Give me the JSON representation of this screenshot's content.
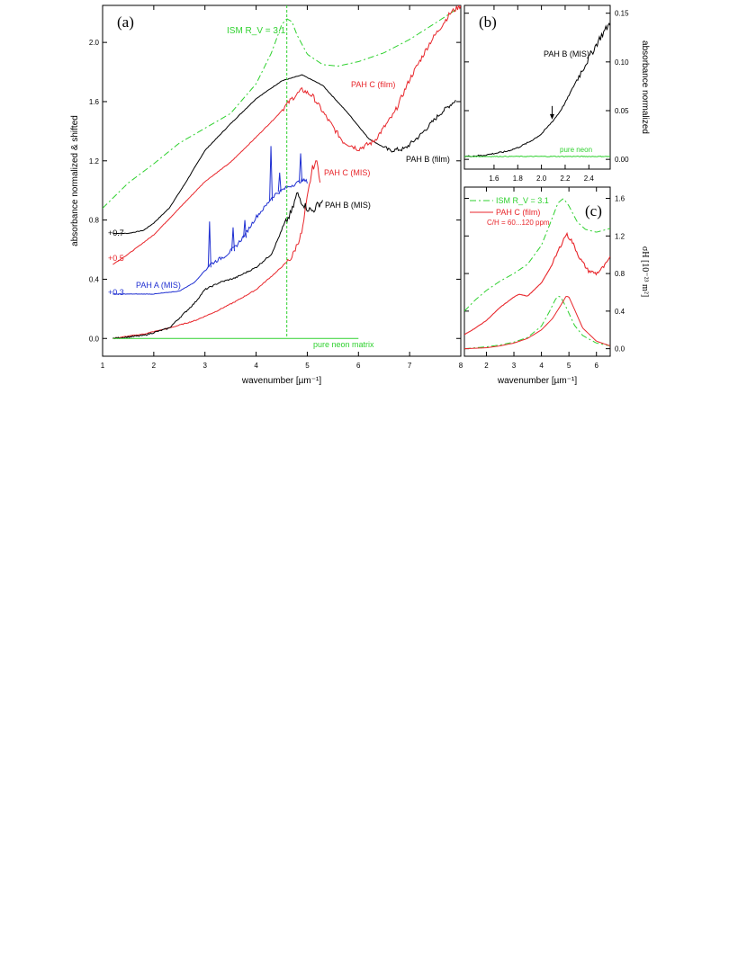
{
  "colors": {
    "black": "#000000",
    "red": "#e8262b",
    "blue": "#1f2fd1",
    "green": "#2fd12f"
  },
  "chart_data": [
    {
      "panel": "(a)",
      "type": "line",
      "xlabel": "wavenumber [µm⁻¹]",
      "ylabel": "absorbance normalized & shifted",
      "xlim": [
        1,
        8
      ],
      "ylim": [
        -0.12,
        2.25
      ],
      "xticks": [
        "1",
        "2",
        "3",
        "4",
        "5",
        "6",
        "7",
        "8"
      ],
      "yticks": [
        "0.0",
        "0.4",
        "0.8",
        "1.2",
        "1.6",
        "2.0"
      ],
      "offsets": [
        "+0.7",
        "+0.5",
        "+0.3"
      ],
      "series": [
        {
          "name": "ISM R_V = 3.1",
          "color": "green",
          "dash": "dashdot",
          "x": [
            1.0,
            1.5,
            2.0,
            2.5,
            3.0,
            3.5,
            4.0,
            4.3,
            4.5,
            4.6,
            4.7,
            4.8,
            5.0,
            5.3,
            5.6,
            6.0,
            6.5,
            7.0,
            7.5,
            7.9
          ],
          "y": [
            0.88,
            1.05,
            1.18,
            1.32,
            1.42,
            1.52,
            1.72,
            1.93,
            2.12,
            2.16,
            2.14,
            2.05,
            1.92,
            1.85,
            1.84,
            1.87,
            1.93,
            2.02,
            2.13,
            2.22
          ]
        },
        {
          "name": "PAH B (film)",
          "color": "black",
          "x": [
            1.2,
            1.5,
            1.8,
            2.0,
            2.3,
            2.6,
            3.0,
            3.5,
            4.0,
            4.5,
            4.9,
            5.3,
            5.8,
            6.2,
            6.6,
            6.9,
            7.2,
            7.6,
            7.9
          ],
          "y": [
            0.71,
            0.71,
            0.73,
            0.78,
            0.88,
            1.04,
            1.27,
            1.45,
            1.62,
            1.74,
            1.78,
            1.71,
            1.52,
            1.35,
            1.27,
            1.28,
            1.37,
            1.52,
            1.61
          ]
        },
        {
          "name": "PAH C (film)",
          "color": "red",
          "x": [
            1.2,
            1.5,
            2.0,
            2.5,
            3.0,
            3.5,
            4.0,
            4.4,
            4.7,
            4.9,
            5.1,
            5.4,
            5.7,
            6.0,
            6.3,
            6.7,
            7.0,
            7.4,
            7.8,
            8.0
          ],
          "y": [
            0.5,
            0.57,
            0.7,
            0.88,
            1.06,
            1.19,
            1.36,
            1.5,
            1.62,
            1.68,
            1.64,
            1.48,
            1.33,
            1.28,
            1.33,
            1.52,
            1.75,
            2.0,
            2.2,
            2.25
          ]
        },
        {
          "name": "PAH C (MIS)",
          "color": "red",
          "x": [
            1.2,
            1.8,
            2.3,
            2.8,
            3.2,
            3.6,
            4.0,
            4.4,
            4.7,
            4.9,
            5.0,
            5.1,
            5.2,
            5.25
          ],
          "y": [
            0.0,
            0.03,
            0.07,
            0.12,
            0.18,
            0.25,
            0.33,
            0.45,
            0.55,
            0.72,
            0.95,
            1.15,
            1.2,
            1.05
          ]
        },
        {
          "name": "PAH B (MIS)",
          "color": "black",
          "x": [
            1.2,
            1.8,
            2.3,
            2.8,
            3.0,
            3.3,
            3.6,
            4.0,
            4.3,
            4.5,
            4.7,
            4.8,
            4.9,
            5.0,
            5.1,
            5.2,
            5.3
          ],
          "y": [
            0.0,
            0.02,
            0.07,
            0.24,
            0.33,
            0.38,
            0.41,
            0.48,
            0.57,
            0.73,
            0.86,
            0.98,
            0.92,
            0.88,
            0.86,
            0.9,
            0.93
          ]
        },
        {
          "name": "PAH A (MIS)",
          "color": "blue",
          "x": [
            1.2,
            2.0,
            2.5,
            2.8,
            3.0,
            3.1,
            3.2,
            3.4,
            3.6,
            3.8,
            4.0,
            4.2,
            4.3,
            4.4,
            4.6,
            4.8,
            4.9,
            5.0
          ],
          "y": [
            0.3,
            0.3,
            0.32,
            0.38,
            0.46,
            0.5,
            0.52,
            0.56,
            0.62,
            0.71,
            0.82,
            0.9,
            0.95,
            0.98,
            1.02,
            1.05,
            1.07,
            1.06
          ]
        },
        {
          "name": "pure neon matrix",
          "color": "green",
          "x": [
            1.2,
            3.0,
            5.0,
            6.0
          ],
          "y": [
            0.0,
            0.0,
            0.0,
            0.0
          ]
        }
      ],
      "spikes": [
        {
          "series": "PAH A (MIS)",
          "x": 3.09,
          "base": 0.48,
          "top": 0.79
        },
        {
          "series": "PAH A (MIS)",
          "x": 3.55,
          "base": 0.59,
          "top": 0.75
        },
        {
          "series": "PAH A (MIS)",
          "x": 3.78,
          "base": 0.68,
          "top": 0.8
        },
        {
          "series": "PAH A (MIS)",
          "x": 4.29,
          "base": 0.93,
          "top": 1.3
        },
        {
          "series": "PAH A (MIS)",
          "x": 4.46,
          "base": 0.99,
          "top": 1.12
        },
        {
          "series": "PAH A (MIS)",
          "x": 4.87,
          "base": 1.06,
          "top": 1.25
        }
      ],
      "labels": [
        "ISM R_V = 3.1",
        "PAH C (film)",
        "PAH B (film)",
        "PAH C (MIS)",
        "PAH B (MIS)",
        "PAH A (MIS)",
        "pure neon matrix"
      ],
      "vline": {
        "x": 4.6
      }
    },
    {
      "panel": "(b)",
      "type": "line",
      "xlabel": "",
      "ylabel": "absorbance normalized",
      "xlim": [
        1.35,
        2.58
      ],
      "ylim": [
        -0.01,
        0.158
      ],
      "xticks": [
        "1.6",
        "1.8",
        "2.0",
        "2.2",
        "2.4"
      ],
      "yticks": [
        "0.00",
        "0.05",
        "0.10",
        "0.15"
      ],
      "series": [
        {
          "name": "PAH B (MIS)",
          "color": "black",
          "x": [
            1.35,
            1.5,
            1.6,
            1.7,
            1.8,
            1.9,
            2.0,
            2.05,
            2.1,
            2.15,
            2.2,
            2.25,
            2.3,
            2.35,
            2.4,
            2.45,
            2.5,
            2.54,
            2.58
          ],
          "y": [
            0.003,
            0.004,
            0.006,
            0.008,
            0.012,
            0.018,
            0.026,
            0.033,
            0.04,
            0.048,
            0.058,
            0.07,
            0.082,
            0.093,
            0.104,
            0.115,
            0.126,
            0.133,
            0.14
          ]
        },
        {
          "name": "pure neon",
          "color": "green",
          "x": [
            1.35,
            2.58
          ],
          "y": [
            0.003,
            0.003
          ]
        }
      ],
      "labels": [
        "PAH B (MIS)",
        "pure neon"
      ]
    },
    {
      "panel": "(c)",
      "type": "line",
      "xlabel": "wavenumber [µm⁻¹]",
      "ylabel": "σH [10⁻²³ m²]",
      "xlim": [
        1.2,
        6.5
      ],
      "ylim": [
        -0.08,
        1.72
      ],
      "xticks": [
        "2",
        "3",
        "4",
        "5",
        "6"
      ],
      "yticks": [
        "0.0",
        "0.4",
        "0.8",
        "1.2",
        "1.6"
      ],
      "series": [
        {
          "name": "ISM R_V = 3.1",
          "color": "green",
          "dash": "dashdot",
          "x": [
            1.2,
            1.6,
            2.0,
            2.5,
            3.0,
            3.5,
            4.0,
            4.3,
            4.6,
            4.8,
            5.0,
            5.3,
            5.6,
            6.0,
            6.5
          ],
          "y": [
            0.4,
            0.52,
            0.62,
            0.72,
            0.8,
            0.9,
            1.1,
            1.32,
            1.55,
            1.6,
            1.52,
            1.35,
            1.27,
            1.24,
            1.28
          ]
        },
        {
          "name": "PAH C (film)",
          "color": "red",
          "x": [
            1.2,
            1.6,
            2.0,
            2.5,
            3.0,
            3.2,
            3.5,
            4.0,
            4.4,
            4.7,
            4.9,
            5.1,
            5.4,
            5.7,
            6.0,
            6.3,
            6.5
          ],
          "y": [
            0.15,
            0.22,
            0.3,
            0.44,
            0.55,
            0.58,
            0.56,
            0.7,
            0.9,
            1.1,
            1.22,
            1.15,
            0.96,
            0.83,
            0.8,
            0.88,
            0.98
          ]
        },
        {
          "name": "ISM R_V = 3.1",
          "color": "green",
          "dash": "dashdot",
          "x": [
            1.2,
            2.0,
            2.5,
            3.0,
            3.5,
            4.0,
            4.3,
            4.5,
            4.6,
            4.7,
            4.9,
            5.2,
            5.5,
            6.0,
            6.5
          ],
          "y": [
            0.0,
            0.02,
            0.04,
            0.07,
            0.12,
            0.24,
            0.4,
            0.52,
            0.56,
            0.55,
            0.44,
            0.25,
            0.14,
            0.06,
            0.03
          ]
        },
        {
          "name": "PAH C (film)",
          "color": "red",
          "x": [
            1.2,
            2.0,
            2.5,
            3.0,
            3.5,
            4.0,
            4.4,
            4.7,
            4.9,
            5.0,
            5.2,
            5.5,
            6.0,
            6.5
          ],
          "y": [
            0.0,
            0.01,
            0.03,
            0.06,
            0.11,
            0.2,
            0.32,
            0.46,
            0.56,
            0.55,
            0.42,
            0.22,
            0.08,
            0.03
          ]
        }
      ],
      "legend": {
        "placement": "top-left",
        "entries": [
          "ISM R_V = 3.1",
          "PAH C (film)"
        ],
        "note": "C/H = 60...120 ppm"
      }
    }
  ]
}
